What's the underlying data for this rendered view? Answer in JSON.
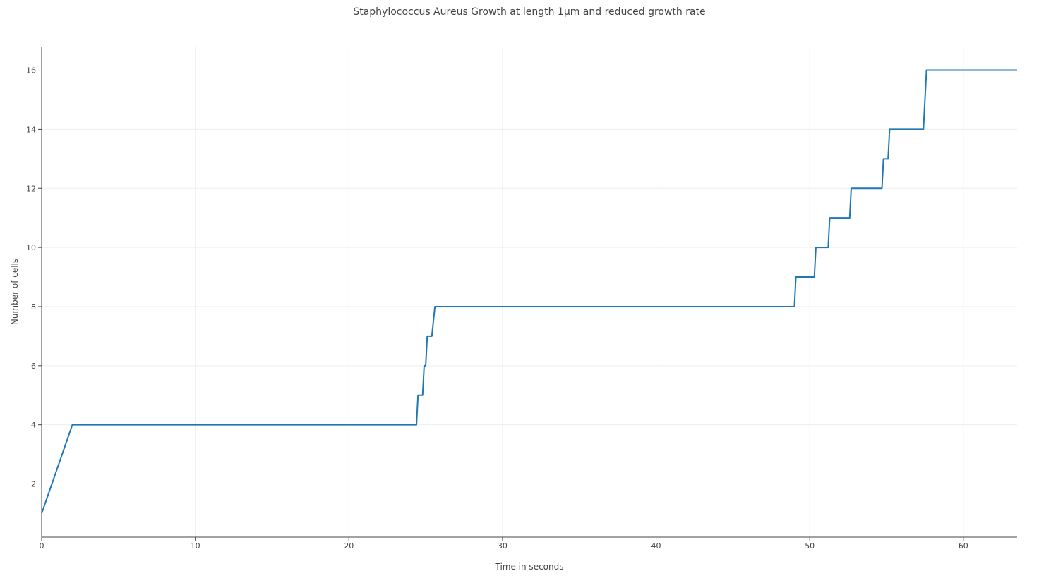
{
  "chart_data": {
    "type": "line",
    "title": "Staphylococcus Aureus Growth at length 1μm and reduced growth rate",
    "xlabel": "Time in seconds",
    "ylabel": "Number of cells",
    "xlim": [
      0,
      63.5
    ],
    "ylim": [
      0.2,
      16.8
    ],
    "xticks": [
      0,
      10,
      20,
      30,
      40,
      50,
      60
    ],
    "yticks": [
      2,
      4,
      6,
      8,
      10,
      12,
      14,
      16
    ],
    "grid": true,
    "legend": "none",
    "series": [
      {
        "color": "#1f77b4",
        "x": [
          0,
          2,
          24.4,
          24.5,
          24.8,
          24.9,
          25.0,
          25.1,
          25.4,
          25.6,
          49.0,
          49.1,
          50.3,
          50.4,
          51.2,
          51.3,
          52.6,
          52.7,
          54.7,
          54.8,
          55.1,
          55.2,
          57.4,
          57.6,
          63.5
        ],
        "y": [
          1,
          4,
          4,
          5,
          5,
          6,
          6,
          7,
          7,
          8,
          8,
          9,
          9,
          10,
          10,
          11,
          11,
          12,
          12,
          13,
          13,
          14,
          14,
          16,
          16
        ]
      }
    ]
  }
}
